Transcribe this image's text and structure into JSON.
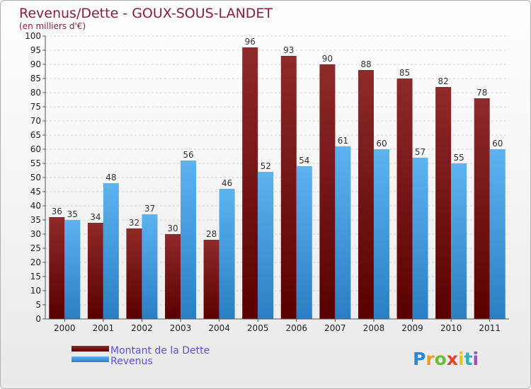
{
  "chart_data": {
    "type": "bar",
    "title": "Revenus/Dette - GOUX-SOUS-LANDET",
    "subtitle": "(en milliers d'€)",
    "categories": [
      "2000",
      "2001",
      "2002",
      "2003",
      "2004",
      "2005",
      "2006",
      "2007",
      "2008",
      "2009",
      "2010",
      "2011"
    ],
    "series": [
      {
        "name": "Montant de la Dette",
        "color": "#7a1010",
        "values": [
          36,
          34,
          32,
          30,
          28,
          96,
          93,
          90,
          88,
          85,
          82,
          78
        ]
      },
      {
        "name": "Revenus",
        "color": "#4aa3e6",
        "values": [
          35,
          48,
          37,
          56,
          46,
          52,
          54,
          61,
          60,
          57,
          55,
          60
        ]
      }
    ],
    "ylim": [
      0,
      100
    ],
    "ytick_step": 5,
    "grid": true,
    "legend_position": "bottom-left"
  },
  "logo": {
    "text": "Proxiti"
  }
}
